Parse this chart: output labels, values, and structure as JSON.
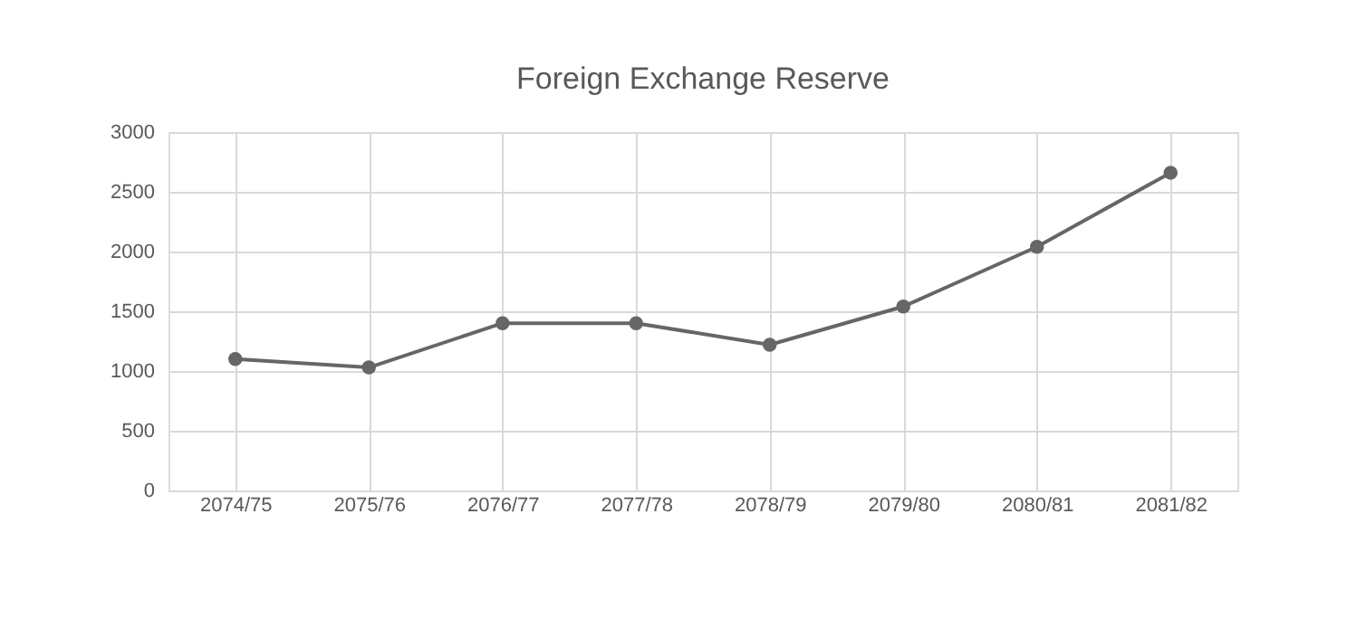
{
  "chart_data": {
    "type": "line",
    "title": "Foreign Exchange Reserve",
    "categories": [
      "2074/75",
      "2075/76",
      "2076/77",
      "2077/78",
      "2078/79",
      "2079/80",
      "2080/81",
      "2081/82"
    ],
    "series": [
      {
        "color": "#666666",
        "values": [
          1100,
          1030,
          1400,
          1400,
          1220,
          1540,
          2040,
          2660
        ]
      }
    ],
    "ylim": [
      0,
      3000
    ],
    "yticks": [
      0,
      500,
      1000,
      1500,
      2000,
      2500,
      3000
    ],
    "grid": true,
    "marker": "circle",
    "line_style": "solid"
  }
}
